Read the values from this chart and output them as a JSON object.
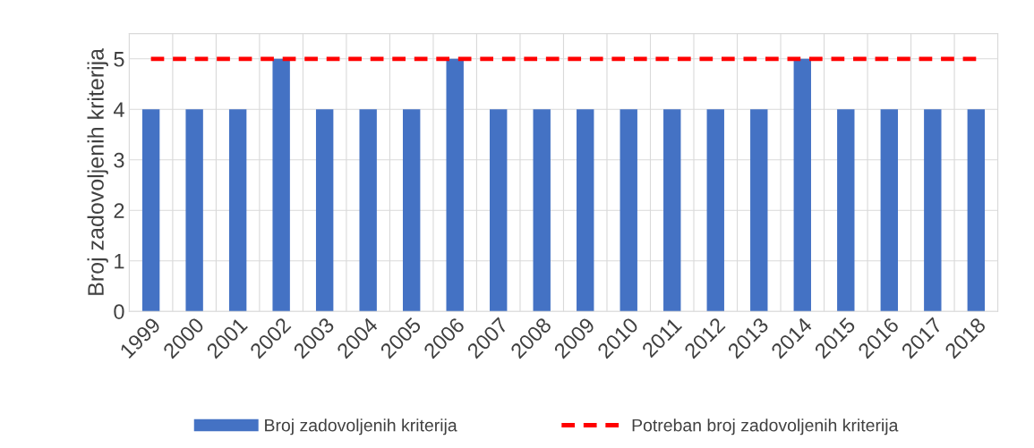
{
  "chart_data": {
    "type": "bar",
    "ylabel": "Broj zadovoljenih kriterija",
    "categories": [
      "1999",
      "2000",
      "2001",
      "2002",
      "2003",
      "2004",
      "2005",
      "2006",
      "2007",
      "2008",
      "2009",
      "2010",
      "2011",
      "2012",
      "2013",
      "2014",
      "2015",
      "2016",
      "2017",
      "2018"
    ],
    "series": [
      {
        "name": "Broj zadovoljenih kriterija",
        "color": "#4472c4",
        "values": [
          4,
          4,
          4,
          5,
          4,
          4,
          4,
          5,
          4,
          4,
          4,
          4,
          4,
          4,
          4,
          5,
          4,
          4,
          4,
          4
        ]
      },
      {
        "name": "Potreban broj zadovoljenih kriterija",
        "type": "line",
        "color": "#ff0000",
        "line_style": "dashed",
        "values": [
          5,
          5,
          5,
          5,
          5,
          5,
          5,
          5,
          5,
          5,
          5,
          5,
          5,
          5,
          5,
          5,
          5,
          5,
          5,
          5
        ]
      }
    ],
    "ylim": [
      0,
      5.5
    ],
    "yticks": [
      0,
      1,
      2,
      3,
      4,
      5
    ],
    "grid": true,
    "legend": "bottom"
  }
}
